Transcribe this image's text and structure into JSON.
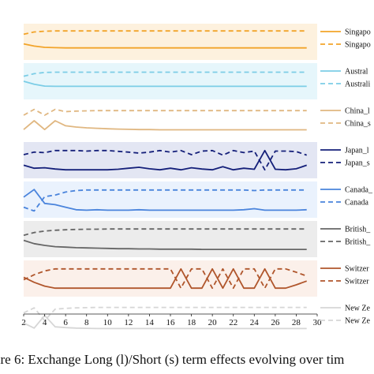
{
  "caption": "ure 6: Exchange Long (l)/Short (s) term effects evolving over tim",
  "chart_data": {
    "type": "line",
    "title": "",
    "xlabel": "",
    "ylabel": "",
    "xlim": [
      2,
      30
    ],
    "x_ticks": [
      "2",
      "4",
      "6",
      "8",
      "10",
      "12",
      "14",
      "16",
      "18",
      "20",
      "22",
      "24",
      "26",
      "28",
      "30"
    ],
    "x": [
      2,
      3,
      4,
      5,
      6,
      7,
      8,
      9,
      10,
      11,
      12,
      13,
      14,
      15,
      16,
      17,
      18,
      19,
      20,
      21,
      22,
      23,
      24,
      25,
      26,
      27,
      28,
      29
    ],
    "panel_ylim": [
      0,
      1
    ],
    "legend_position": "right",
    "panels": [
      {
        "bg": "#fdf1de",
        "series": [
          {
            "name": "Singapo",
            "style": "solid",
            "color": "#f2a42a",
            "values": [
              0.42,
              0.33,
              0.28,
              0.27,
              0.26,
              0.26,
              0.26,
              0.26,
              0.26,
              0.26,
              0.26,
              0.26,
              0.26,
              0.26,
              0.26,
              0.26,
              0.26,
              0.26,
              0.26,
              0.26,
              0.26,
              0.26,
              0.26,
              0.26,
              0.26,
              0.26,
              0.26,
              0.26
            ]
          },
          {
            "name": "Singapo",
            "style": "dashed",
            "color": "#f2a42a",
            "values": [
              0.8,
              0.89,
              0.92,
              0.93,
              0.93,
              0.93,
              0.93,
              0.93,
              0.93,
              0.93,
              0.93,
              0.93,
              0.93,
              0.93,
              0.93,
              0.93,
              0.93,
              0.93,
              0.93,
              0.93,
              0.93,
              0.93,
              0.93,
              0.93,
              0.93,
              0.93,
              0.93,
              0.93
            ]
          }
        ]
      },
      {
        "bg": "#e6f6fb",
        "series": [
          {
            "name": "Austral",
            "style": "solid",
            "color": "#7ccde6",
            "values": [
              0.5,
              0.38,
              0.31,
              0.3,
              0.3,
              0.3,
              0.3,
              0.3,
              0.3,
              0.3,
              0.3,
              0.3,
              0.3,
              0.3,
              0.3,
              0.3,
              0.3,
              0.3,
              0.3,
              0.3,
              0.3,
              0.3,
              0.3,
              0.3,
              0.3,
              0.3,
              0.3,
              0.3
            ]
          },
          {
            "name": "Australi",
            "style": "dashed",
            "color": "#7ccde6",
            "values": [
              0.7,
              0.8,
              0.85,
              0.86,
              0.86,
              0.86,
              0.86,
              0.86,
              0.86,
              0.86,
              0.86,
              0.86,
              0.86,
              0.86,
              0.86,
              0.86,
              0.86,
              0.86,
              0.86,
              0.86,
              0.86,
              0.86,
              0.86,
              0.86,
              0.86,
              0.86,
              0.86,
              0.86
            ]
          }
        ]
      },
      {
        "bg": "#ffffff",
        "series": [
          {
            "name": "China_l",
            "style": "solid",
            "color": "#e0b781",
            "values": [
              0.15,
              0.5,
              0.15,
              0.5,
              0.3,
              0.25,
              0.22,
              0.2,
              0.18,
              0.17,
              0.16,
              0.15,
              0.15,
              0.14,
              0.14,
              0.14,
              0.14,
              0.14,
              0.14,
              0.14,
              0.14,
              0.14,
              0.14,
              0.14,
              0.14,
              0.14,
              0.14,
              0.14
            ]
          },
          {
            "name": "China_s",
            "style": "dashed",
            "color": "#e0b781",
            "values": [
              0.72,
              0.95,
              0.72,
              0.95,
              0.86,
              0.88,
              0.89,
              0.9,
              0.9,
              0.9,
              0.9,
              0.9,
              0.9,
              0.9,
              0.9,
              0.9,
              0.9,
              0.9,
              0.9,
              0.9,
              0.9,
              0.9,
              0.9,
              0.9,
              0.9,
              0.9,
              0.9,
              0.9
            ]
          }
        ]
      },
      {
        "bg": "#e3e6f3",
        "series": [
          {
            "name": "Japan_l",
            "style": "solid",
            "color": "#15207a",
            "values": [
              0.3,
              0.18,
              0.2,
              0.15,
              0.12,
              0.12,
              0.12,
              0.12,
              0.12,
              0.14,
              0.18,
              0.22,
              0.16,
              0.12,
              0.18,
              0.12,
              0.2,
              0.15,
              0.12,
              0.24,
              0.12,
              0.18,
              0.14,
              0.88,
              0.14,
              0.12,
              0.16,
              0.3
            ]
          },
          {
            "name": "Japan_s",
            "style": "dashed",
            "color": "#15207a",
            "values": [
              0.72,
              0.82,
              0.8,
              0.88,
              0.88,
              0.88,
              0.86,
              0.88,
              0.88,
              0.85,
              0.82,
              0.78,
              0.82,
              0.88,
              0.82,
              0.88,
              0.72,
              0.86,
              0.88,
              0.7,
              0.88,
              0.8,
              0.86,
              0.12,
              0.86,
              0.86,
              0.84,
              0.7
            ]
          }
        ]
      },
      {
        "bg": "#eaf2fd",
        "series": [
          {
            "name": "Canada_",
            "style": "solid",
            "color": "#4a84dc",
            "values": [
              0.6,
              0.9,
              0.35,
              0.3,
              0.2,
              0.1,
              0.08,
              0.1,
              0.08,
              0.08,
              0.08,
              0.1,
              0.08,
              0.08,
              0.08,
              0.08,
              0.08,
              0.08,
              0.08,
              0.08,
              0.08,
              0.1,
              0.14,
              0.08,
              0.08,
              0.08,
              0.08,
              0.1
            ]
          },
          {
            "name": "Canada",
            "style": "dashed",
            "color": "#4a84dc",
            "values": [
              0.2,
              0.05,
              0.62,
              0.68,
              0.8,
              0.86,
              0.88,
              0.88,
              0.88,
              0.88,
              0.88,
              0.88,
              0.88,
              0.88,
              0.88,
              0.88,
              0.88,
              0.88,
              0.88,
              0.88,
              0.88,
              0.88,
              0.86,
              0.88,
              0.88,
              0.88,
              0.88,
              0.88
            ]
          }
        ]
      },
      {
        "bg": "#ececec",
        "series": [
          {
            "name": "British_",
            "style": "solid",
            "color": "#666666",
            "values": [
              0.45,
              0.32,
              0.25,
              0.2,
              0.18,
              0.16,
              0.15,
              0.14,
              0.13,
              0.12,
              0.12,
              0.11,
              0.11,
              0.1,
              0.1,
              0.1,
              0.1,
              0.09,
              0.09,
              0.09,
              0.09,
              0.09,
              0.09,
              0.09,
              0.09,
              0.09,
              0.09,
              0.09
            ]
          },
          {
            "name": "British_",
            "style": "dashed",
            "color": "#666666",
            "values": [
              0.65,
              0.76,
              0.82,
              0.85,
              0.87,
              0.88,
              0.89,
              0.89,
              0.9,
              0.9,
              0.9,
              0.9,
              0.9,
              0.9,
              0.9,
              0.9,
              0.9,
              0.9,
              0.9,
              0.9,
              0.9,
              0.9,
              0.9,
              0.9,
              0.9,
              0.9,
              0.9,
              0.9
            ]
          }
        ]
      },
      {
        "bg": "#fbf0ea",
        "series": [
          {
            "name": "Switzer",
            "style": "solid",
            "color": "#b0562c",
            "values": [
              0.55,
              0.35,
              0.2,
              0.12,
              0.12,
              0.12,
              0.12,
              0.12,
              0.12,
              0.12,
              0.12,
              0.12,
              0.12,
              0.12,
              0.12,
              0.88,
              0.12,
              0.12,
              0.88,
              0.12,
              0.88,
              0.12,
              0.12,
              0.88,
              0.12,
              0.12,
              0.25,
              0.4
            ]
          },
          {
            "name": "Switzer",
            "style": "dashed",
            "color": "#b0562c",
            "values": [
              0.45,
              0.65,
              0.8,
              0.88,
              0.88,
              0.88,
              0.88,
              0.88,
              0.88,
              0.88,
              0.88,
              0.88,
              0.88,
              0.88,
              0.88,
              0.12,
              0.88,
              0.88,
              0.12,
              0.88,
              0.12,
              0.88,
              0.88,
              0.12,
              0.88,
              0.88,
              0.75,
              0.6
            ]
          }
        ]
      },
      {
        "bg": "#ffffff",
        "series": [
          {
            "name": "New Ze",
            "style": "solid",
            "color": "#d6d6d6",
            "values": [
              0.3,
              0.1,
              0.6,
              0.15,
              0.12,
              0.1,
              0.09,
              0.08,
              0.08,
              0.08,
              0.08,
              0.08,
              0.08,
              0.08,
              0.08,
              0.08,
              0.08,
              0.08,
              0.08,
              0.08,
              0.08,
              0.08,
              0.08,
              0.08,
              0.08,
              0.08,
              0.08,
              0.08
            ]
          },
          {
            "name": "New Ze",
            "style": "dashed",
            "color": "#d6d6d6",
            "values": [
              0.7,
              0.9,
              0.4,
              0.85,
              0.88,
              0.9,
              0.91,
              0.92,
              0.92,
              0.92,
              0.92,
              0.92,
              0.92,
              0.92,
              0.92,
              0.92,
              0.92,
              0.92,
              0.92,
              0.92,
              0.92,
              0.92,
              0.92,
              0.92,
              0.92,
              0.92,
              0.92,
              0.92
            ]
          }
        ]
      }
    ]
  }
}
